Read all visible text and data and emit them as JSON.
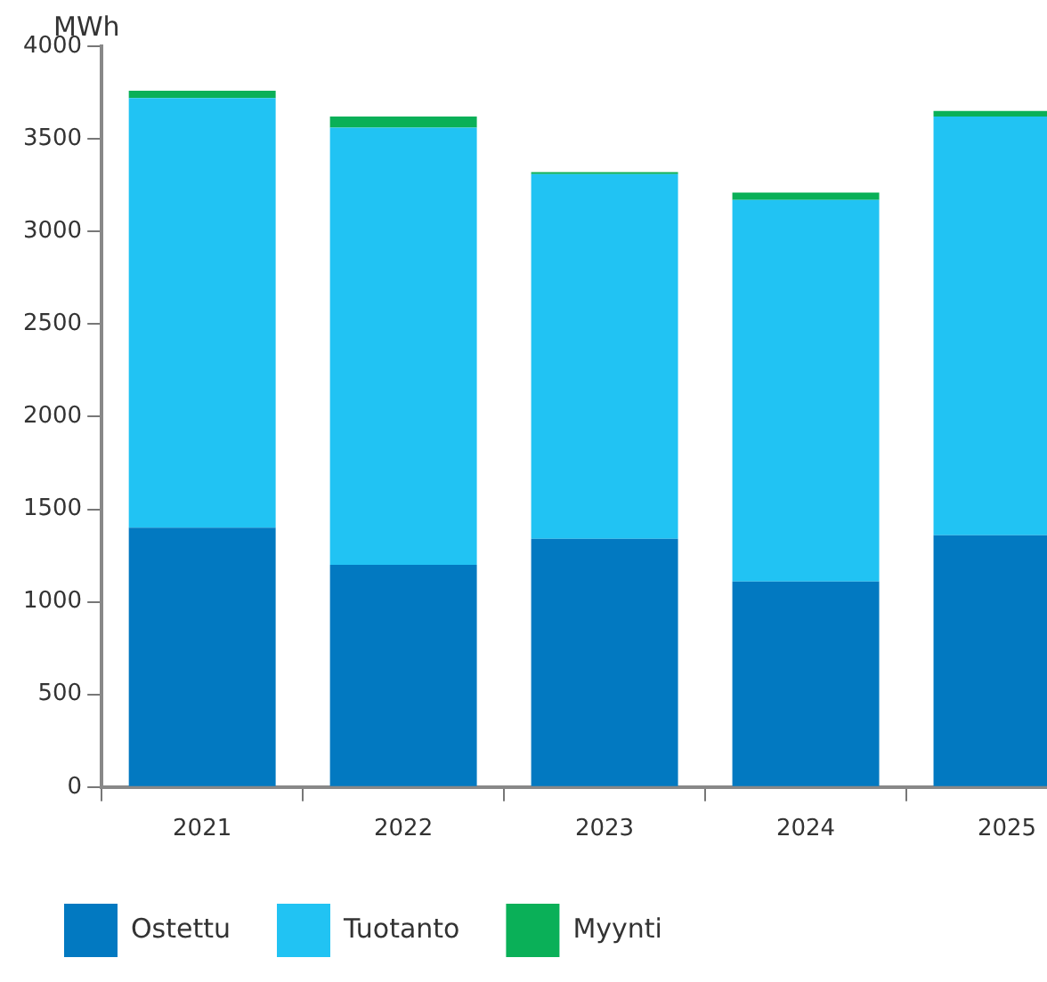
{
  "chart_data": {
    "type": "bar",
    "stacked": true,
    "ylabel": "MWh",
    "categories": [
      "2021",
      "2022",
      "2023",
      "2024",
      "2025"
    ],
    "series": [
      {
        "name": "Ostettu",
        "color": "#0279c1",
        "values": [
          1400,
          1200,
          1340,
          1110,
          1360
        ]
      },
      {
        "name": "Tuotanto",
        "color": "#21c3f3",
        "values": [
          2320,
          2360,
          1970,
          2060,
          2260
        ]
      },
      {
        "name": "Myynti",
        "color": "#0ab058",
        "values": [
          40,
          60,
          10,
          40,
          30
        ]
      }
    ],
    "ylim": [
      0,
      4000
    ],
    "yticks": [
      0,
      500,
      1000,
      1500,
      2000,
      2500,
      3000,
      3500,
      4000
    ],
    "grid": false,
    "legend": "bottom"
  }
}
